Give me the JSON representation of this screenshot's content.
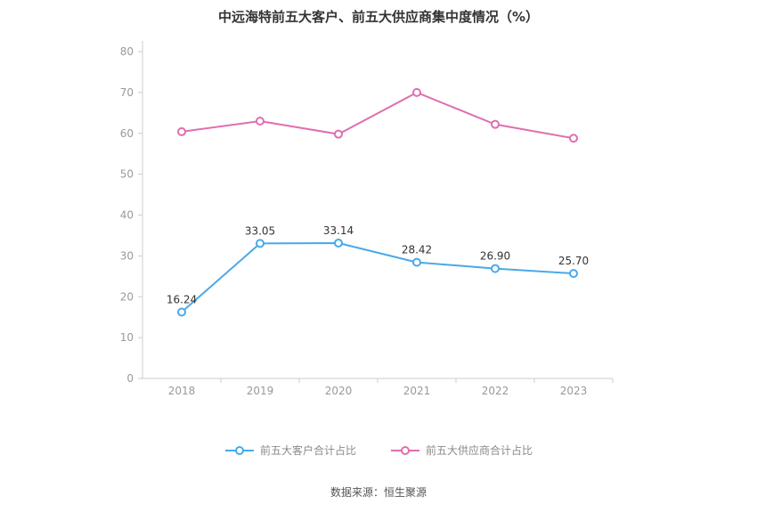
{
  "chart_data": {
    "type": "line",
    "title": "中远海特前五大客户、前五大供应商集中度情况（%）",
    "categories": [
      "2018",
      "2019",
      "2020",
      "2021",
      "2022",
      "2023"
    ],
    "series": [
      {
        "name": "前五大客户合计占比",
        "color": "#49a9e8",
        "values": [
          16.24,
          33.05,
          33.14,
          28.42,
          26.9,
          25.7
        ],
        "labels": [
          "16.24",
          "33.05",
          "33.14",
          "28.42",
          "26.90",
          "25.70"
        ],
        "show_labels": true
      },
      {
        "name": "前五大供应商合计占比",
        "color": "#df6fb0",
        "values": [
          60.4,
          63.0,
          59.8,
          70.0,
          62.2,
          58.8
        ],
        "labels": [],
        "show_labels": false
      }
    ],
    "xlabel": "",
    "ylabel": "",
    "ylim": [
      0,
      80
    ],
    "yticks": [
      0,
      10,
      20,
      30,
      40,
      50,
      60,
      70,
      80
    ],
    "grid": false,
    "legend_position": "bottom",
    "axis_color": "#cccccc",
    "tick_label_color": "#999999",
    "data_label_color": "#333333"
  },
  "footer": {
    "source": "数据来源：恒生聚源"
  }
}
